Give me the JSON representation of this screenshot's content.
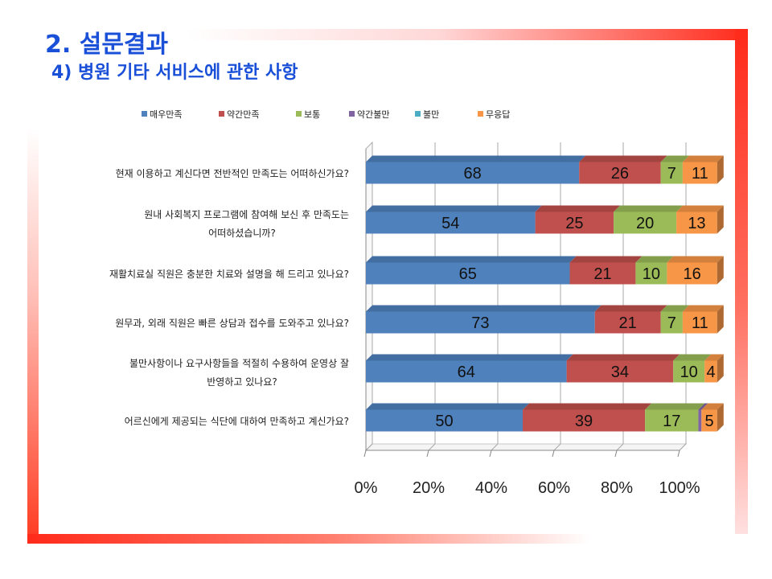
{
  "slide": {
    "title": "2. 설문결과",
    "subtitle": "4) 병원 기타 서비스에 관한 사항"
  },
  "chart_data": {
    "type": "bar",
    "orientation": "horizontal",
    "stacked": "percent",
    "three_d": true,
    "legend_position": "top",
    "categories": [
      "현재 이용하고 계신다면 전반적인 만족도는 어떠하신가요?",
      "원내 사회복지 프로그램에 참여해 보신 후 만족도는 어떠하셨습니까?",
      "재활치료실 직원은 충분한 치료와 설명을 해 드리고 있나요?",
      "원무과, 외래 직원은 빠른 상담과 접수를 도와주고 있나요?",
      "불만사항이나 요구사항들을 적절히 수용하여 운영상 잘 반영하고 있나요?",
      "어르신에게 제공되는 식단에 대하여 만족하고 계신가요?"
    ],
    "category_lines": [
      [
        "현재 이용하고 계신다면 전반적인 만족도는 어떠하신가요?"
      ],
      [
        "원내 사회복지 프로그램에 참여해 보신 후 만족도는",
        "어떠하셨습니까?"
      ],
      [
        "재활치료실 직원은 충분한 치료와 설명을 해 드리고 있나요?"
      ],
      [
        "원무과, 외래 직원은 빠른 상담과 접수를 도와주고 있나요?"
      ],
      [
        "불만사항이나 요구사항들을 적절히 수용하여 운영상 잘",
        "반영하고 있나요?"
      ],
      [
        "어르신에게 제공되는 식단에 대하여 만족하고 계신가요?"
      ]
    ],
    "series": [
      {
        "name": "매우만족",
        "color": "#4f81bd",
        "values": [
          68,
          54,
          65,
          73,
          64,
          50
        ]
      },
      {
        "name": "약간만족",
        "color": "#c0504d",
        "values": [
          26,
          25,
          21,
          21,
          34,
          39
        ]
      },
      {
        "name": "보통",
        "color": "#9bbb59",
        "values": [
          7,
          20,
          10,
          7,
          10,
          17
        ]
      },
      {
        "name": "약간불만",
        "color": "#8064a2",
        "values": [
          0,
          0,
          0,
          0,
          0,
          1
        ]
      },
      {
        "name": "불만",
        "color": "#4bacc6",
        "values": [
          0,
          0,
          0,
          0,
          0,
          0
        ]
      },
      {
        "name": "무응답",
        "color": "#f79646",
        "values": [
          11,
          13,
          16,
          11,
          4,
          5
        ]
      }
    ],
    "data_labels": [
      [
        "68",
        "26",
        "7",
        "",
        "",
        "11"
      ],
      [
        "54",
        "25",
        "20",
        "",
        "",
        "13"
      ],
      [
        "65",
        "21",
        "10",
        "",
        "",
        "16"
      ],
      [
        "73",
        "21",
        "7",
        "",
        "",
        "11"
      ],
      [
        "64",
        "34",
        "10",
        "",
        "",
        "4"
      ],
      [
        "50",
        "39",
        "17",
        "",
        "",
        "5"
      ]
    ],
    "x_ticks": [
      "0%",
      "20%",
      "40%",
      "60%",
      "80%",
      "100%"
    ],
    "xlim": [
      0,
      100
    ],
    "grid": true
  }
}
